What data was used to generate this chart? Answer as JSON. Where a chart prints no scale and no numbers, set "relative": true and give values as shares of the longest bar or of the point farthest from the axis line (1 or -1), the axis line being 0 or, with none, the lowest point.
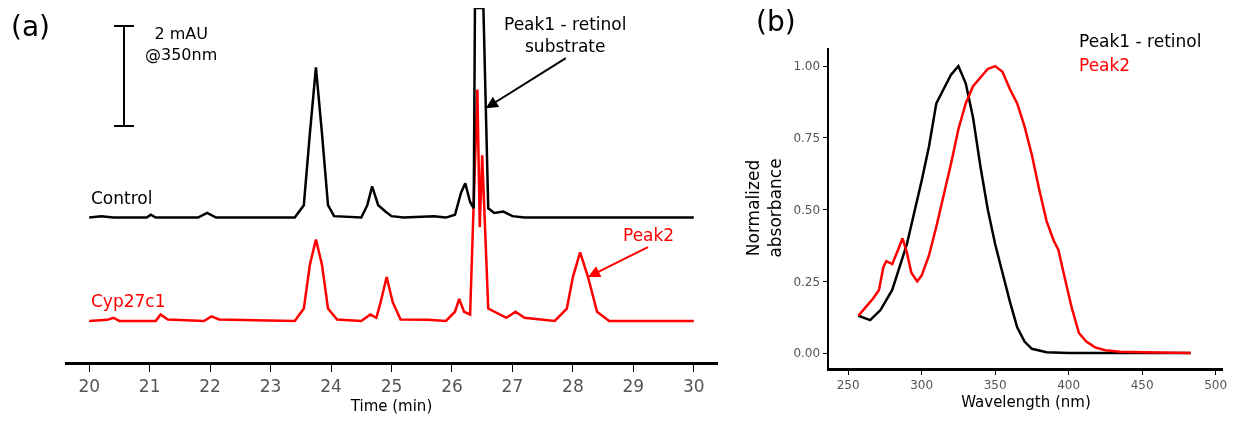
{
  "chart_data": [
    {
      "type": "line",
      "relative": true,
      "xlabel": "Time (min)",
      "xlim": [
        19.6,
        30.4
      ],
      "xticks": [
        20,
        21,
        22,
        23,
        24,
        25,
        26,
        27,
        28,
        29,
        30
      ],
      "line_style": "solid",
      "annotations": [
        "(a)",
        "2 mAU\n@350nm",
        {
          "text": "Peak1 - retinol\nsubstrate",
          "x": 26.56,
          "y": 0.717
        },
        {
          "text": "Peak2",
          "x": 28.25,
          "y": 0.24
        }
      ],
      "series": [
        {
          "name": "Cyp27c1",
          "color": "#ff0000",
          "x": [
            20,
            20.3,
            20.4,
            20.5,
            21.1,
            21.18,
            21.3,
            21.9,
            22.02,
            22.15,
            23.4,
            23.55,
            23.65,
            23.75,
            23.85,
            23.95,
            24.1,
            24.5,
            24.65,
            24.75,
            24.82,
            24.92,
            25.02,
            25.15,
            25.6,
            25.9,
            26.05,
            26.12,
            26.2,
            26.3,
            26.42,
            26.46,
            26.5,
            26.6,
            26.9,
            27.05,
            27.2,
            27.7,
            27.9,
            28,
            28.12,
            28.25,
            28.4,
            28.6,
            30
          ],
          "values": [
            0.116,
            0.119,
            0.125,
            0.116,
            0.116,
            0.134,
            0.12,
            0.116,
            0.129,
            0.12,
            0.116,
            0.151,
            0.275,
            0.346,
            0.275,
            0.151,
            0.12,
            0.116,
            0.134,
            0.125,
            0.169,
            0.24,
            0.169,
            0.12,
            0.119,
            0.116,
            0.142,
            0.178,
            0.142,
            0.134,
            0.77,
            0.381,
            0.584,
            0.151,
            0.125,
            0.142,
            0.125,
            0.116,
            0.151,
            0.24,
            0.31,
            0.24,
            0.142,
            0.116,
            0.116
          ]
        },
        {
          "name": "Control",
          "color": "#000000",
          "x": [
            20,
            20.2,
            20.4,
            20.95,
            21.02,
            21.1,
            21.8,
            21.95,
            22.1,
            23.4,
            23.55,
            23.65,
            23.75,
            23.85,
            23.95,
            24.05,
            24.5,
            24.6,
            24.68,
            24.78,
            24.9,
            25,
            25.2,
            25.7,
            25.9,
            26.05,
            26.15,
            26.22,
            26.3,
            26.36,
            26.38,
            26.52,
            26.6,
            26.7,
            26.85,
            27,
            27.2,
            28,
            29,
            30
          ],
          "values": [
            0.408,
            0.412,
            0.408,
            0.408,
            0.416,
            0.408,
            0.408,
            0.421,
            0.408,
            0.408,
            0.443,
            0.646,
            0.832,
            0.646,
            0.443,
            0.412,
            0.408,
            0.443,
            0.496,
            0.443,
            0.425,
            0.412,
            0.408,
            0.412,
            0.408,
            0.416,
            0.478,
            0.505,
            0.452,
            0.434,
            1,
            1,
            0.434,
            0.421,
            0.425,
            0.412,
            0.408,
            0.408,
            0.408,
            0.408
          ]
        }
      ]
    },
    {
      "type": "line",
      "xlabel": "Wavelength (nm)",
      "ylabel": "Normalized\nabsorbance",
      "xlim": [
        237,
        505
      ],
      "xticks": [
        250,
        300,
        350,
        400,
        450,
        500
      ],
      "ylim": [
        -0.052,
        1.063
      ],
      "yticks": [
        {
          "value": 0,
          "label": "0.00"
        },
        {
          "value": 0.25,
          "label": "0.25"
        },
        {
          "value": 0.5,
          "label": "0.50"
        },
        {
          "value": 0.75,
          "label": "0.75"
        },
        {
          "value": 1,
          "label": "1.00"
        }
      ],
      "grid": false,
      "line_style": "solid",
      "annotations": [
        "(b)"
      ],
      "series": [
        {
          "name": "Peak1 - retinol",
          "color": "#000000",
          "x": [
            257,
            265,
            272,
            280,
            290,
            300,
            305,
            310,
            315,
            320,
            325,
            330,
            335,
            340,
            345,
            350,
            355,
            360,
            365,
            370,
            375,
            385,
            400,
            450,
            483
          ],
          "values": [
            0.13,
            0.115,
            0.15,
            0.22,
            0.38,
            0.6,
            0.72,
            0.87,
            0.92,
            0.97,
            1,
            0.94,
            0.82,
            0.65,
            0.5,
            0.38,
            0.28,
            0.18,
            0.09,
            0.04,
            0.015,
            0.003,
            0,
            0,
            0
          ]
        },
        {
          "name": "Peak2",
          "color": "#ff0000",
          "x": [
            257,
            262,
            267,
            271,
            274,
            276,
            280,
            284,
            287,
            290,
            293,
            297,
            300,
            305,
            310,
            315,
            320,
            325,
            330,
            335,
            340,
            345,
            350,
            355,
            360,
            365,
            370,
            375,
            380,
            385,
            390,
            393,
            397,
            402,
            407,
            412,
            418,
            425,
            435,
            450,
            483
          ],
          "values": [
            0.13,
            0.16,
            0.19,
            0.22,
            0.3,
            0.32,
            0.31,
            0.36,
            0.4,
            0.35,
            0.28,
            0.25,
            0.27,
            0.34,
            0.44,
            0.55,
            0.66,
            0.78,
            0.87,
            0.93,
            0.96,
            0.99,
            1,
            0.98,
            0.92,
            0.87,
            0.79,
            0.69,
            0.57,
            0.46,
            0.39,
            0.36,
            0.27,
            0.16,
            0.07,
            0.04,
            0.02,
            0.01,
            0.005,
            0.003,
            0
          ]
        }
      ]
    }
  ]
}
